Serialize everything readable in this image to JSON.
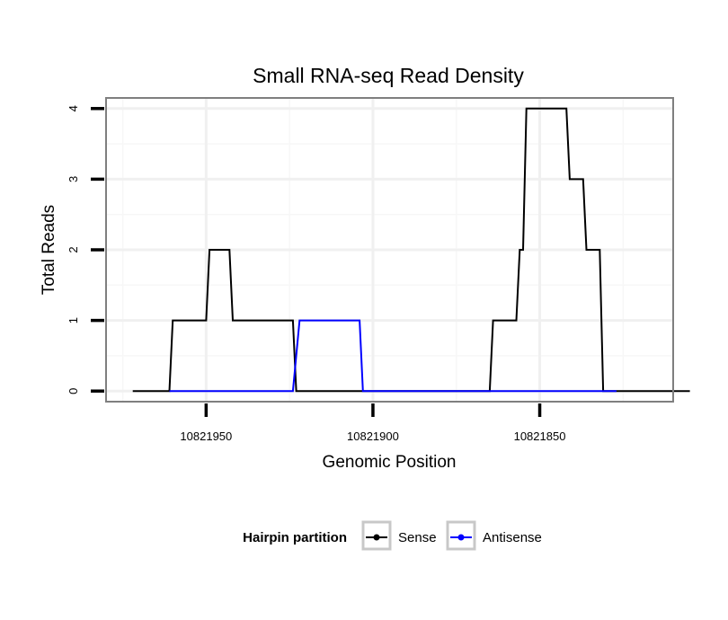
{
  "chart_data": {
    "type": "line",
    "title": "Small RNA-seq Read Density",
    "xlabel": "Genomic Position",
    "ylabel": "Total Reads",
    "x_reversed": true,
    "xlim": [
      10821980,
      10821810
    ],
    "ylim": [
      -0.15,
      4.15
    ],
    "x_ticks": [
      10821950,
      10821900,
      10821850
    ],
    "x_tick_labels": [
      "10821950",
      "10821900",
      "10821850"
    ],
    "y_ticks": [
      0,
      1,
      2,
      3,
      4
    ],
    "y_tick_labels": [
      "0",
      "1",
      "2",
      "3",
      "4"
    ],
    "grid": true,
    "legend": {
      "title": "Hairpin partition",
      "position": "bottom",
      "entries": [
        "Sense",
        "Antisense"
      ]
    },
    "series": [
      {
        "name": "Sense",
        "color": "#000000",
        "x": [
          10821972,
          10821961,
          10821960,
          10821950,
          10821949,
          10821943,
          10821942,
          10821927,
          10821926,
          10821924,
          10821923,
          10821896,
          10821895,
          10821865,
          10821864,
          10821857,
          10821856,
          10821855,
          10821854,
          10821842,
          10821841,
          10821837,
          10821836,
          10821832,
          10821831,
          10821828,
          10821827,
          10821805
        ],
        "y": [
          0,
          0,
          1,
          1,
          2,
          2,
          1,
          1,
          1,
          1,
          0,
          0,
          0,
          0,
          1,
          1,
          2,
          2,
          4,
          4,
          3,
          3,
          2,
          2,
          0,
          0,
          0,
          0
        ]
      },
      {
        "name": "Antisense",
        "color": "#0000ff",
        "x": [
          10821961,
          10821924,
          10821922,
          10821904,
          10821903,
          10821864,
          10821827
        ],
        "y": [
          0,
          0,
          1,
          1,
          0,
          0,
          0
        ]
      }
    ]
  }
}
